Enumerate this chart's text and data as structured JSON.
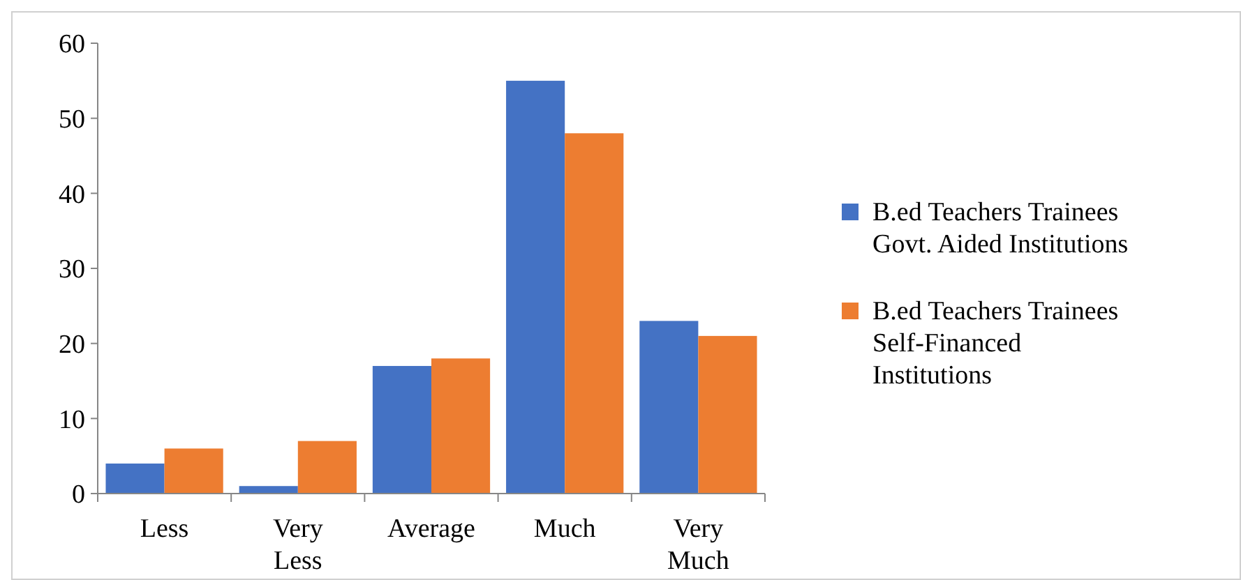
{
  "chart_data": {
    "type": "bar",
    "categories": [
      "Less",
      "Very Less",
      "Average",
      "Much",
      "Very Much"
    ],
    "series": [
      {
        "name": "B.ed Teachers Trainees Govt. Aided Institutions",
        "color": "#4472c4",
        "values": [
          4,
          1,
          17,
          55,
          23
        ]
      },
      {
        "name": "B.ed Teachers Trainees Self-Financed Institutions",
        "color": "#ed7d31",
        "values": [
          6,
          7,
          18,
          48,
          21
        ]
      }
    ],
    "ylim": [
      0,
      60
    ],
    "yticks": [
      0,
      10,
      20,
      30,
      40,
      50,
      60
    ],
    "grid": false,
    "legend": "right"
  }
}
